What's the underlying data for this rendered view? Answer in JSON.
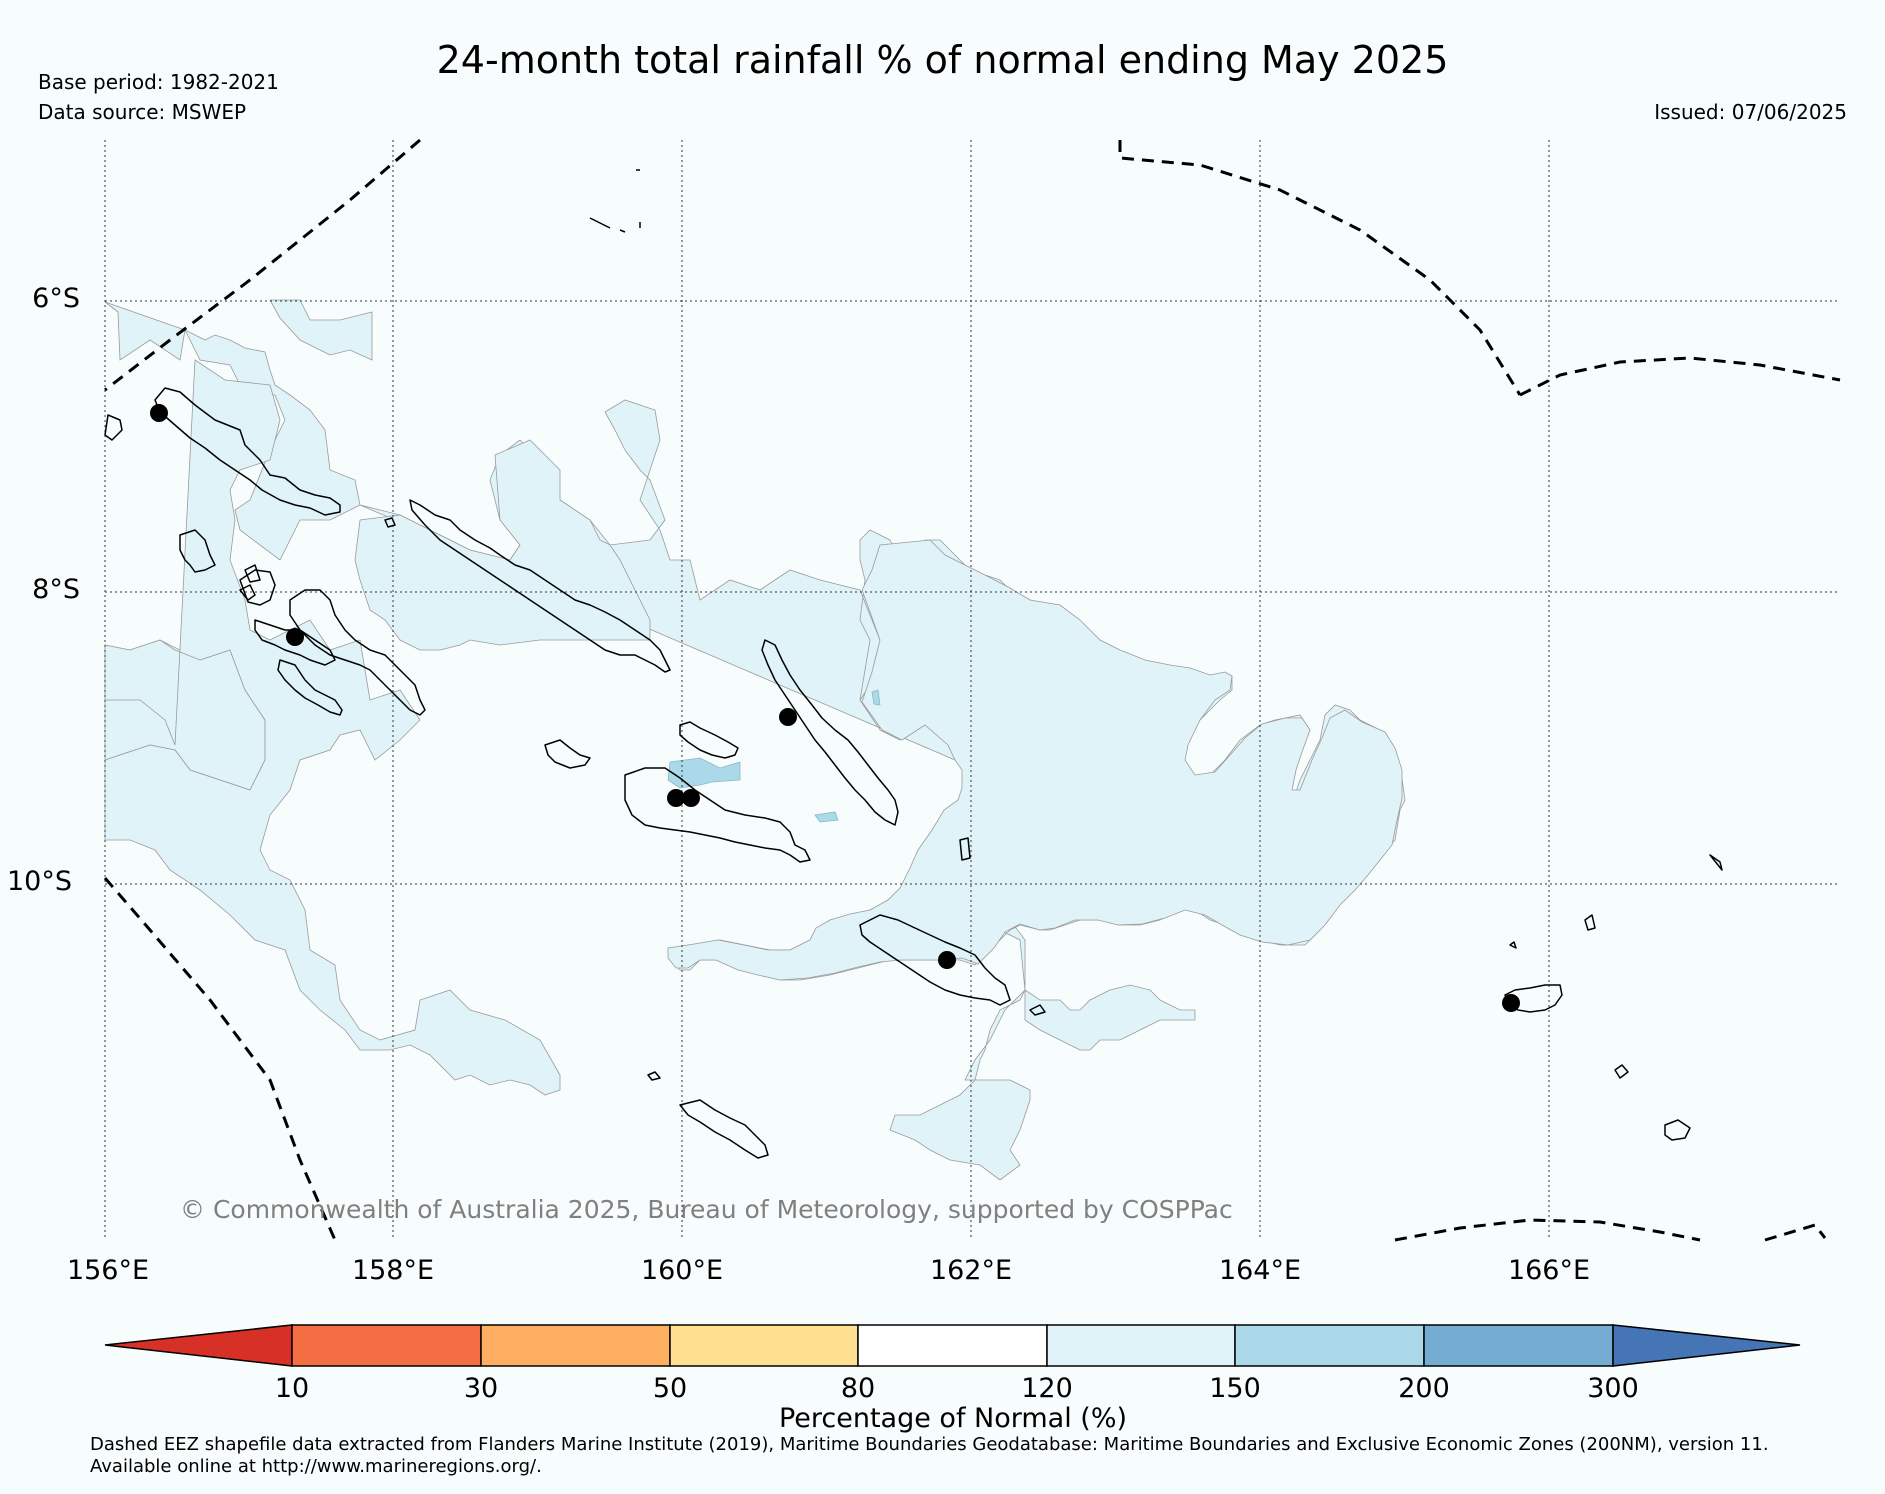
{
  "title": "24-month total rainfall % of normal ending May 2025",
  "base_period": "Base period: 1982-2021",
  "data_source": "Data source: MSWEP",
  "issued": "Issued: 07/06/2025",
  "lat_ticks": [
    "6°S",
    "8°S",
    "10°S"
  ],
  "lon_ticks": [
    "156°E",
    "158°E",
    "160°E",
    "162°E",
    "164°E",
    "166°E"
  ],
  "copyright": "© Commonwealth of Australia 2025, Bureau of Meteorology, supported by COSPPac",
  "colorbar": {
    "label": "Percentage of Normal (%)",
    "ticks": [
      "10",
      "30",
      "50",
      "80",
      "120",
      "150",
      "200",
      "300"
    ],
    "colors": {
      "below_10": "#d73027",
      "10_30": "#f46d43",
      "30_50": "#fdae61",
      "50_80": "#fee090",
      "80_120": "#ffffff",
      "120_150": "#e0f3f8",
      "150_200": "#abd9e9",
      "200_300": "#74add1",
      "above_300": "#4575b4"
    }
  },
  "footnote": {
    "line1": "Dashed EEZ shapefile data extracted from Flanders Marine Institute (2019), Maritime Boundaries Geodatabase: Maritime Boundaries and Exclusive Economic Zones (200NM), version 11.",
    "line2": "Available online at http://www.marineregions.org/."
  }
}
